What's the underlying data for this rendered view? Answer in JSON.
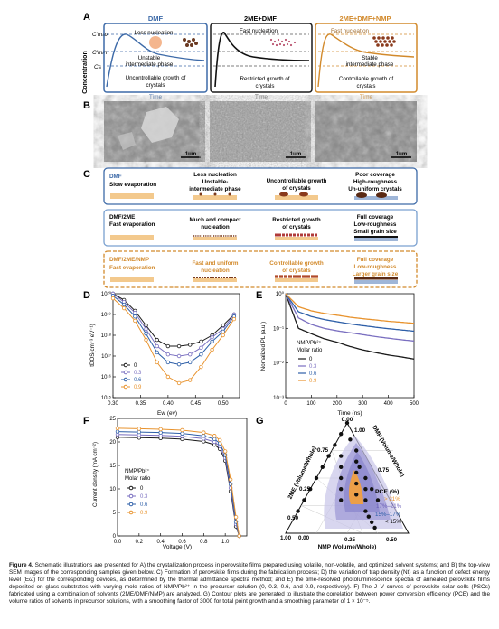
{
  "panelA": {
    "letter": "A",
    "ylabel": "Concentration",
    "cmax": "C′max",
    "cmin": "C′min",
    "cs": "Cs",
    "sub": [
      {
        "title": "DMF",
        "l1": "Less nucleation",
        "l2": "Unstable",
        "l3": "intermediate phase",
        "l4": "Uncontrollable growth of",
        "l5": "crystals",
        "time": "Time",
        "color": "#3d6aa8"
      },
      {
        "title": "2ME+DMF",
        "l1": "Fast nucleation",
        "l4": "Restricted growth of",
        "l5": "crystals",
        "time": "Time",
        "color": "#1a1a1a"
      },
      {
        "title": "2ME+DMF+NMP",
        "l1": "Fast nucleation",
        "l2": "Stable",
        "l3": "intermediate phase",
        "l4": "Controllable growth of",
        "l5": "crystals",
        "time": "Time",
        "color": "#d28a2c"
      }
    ]
  },
  "panelB": {
    "letter": "B",
    "scale": [
      "1um",
      "1um",
      "1um"
    ]
  },
  "panelC": {
    "letter": "C",
    "rows": [
      {
        "name": "DMF",
        "sub": "Slow evaporation",
        "c2a": "Less nucleation",
        "c2b": "Unstable-",
        "c2c": "intermediate phase",
        "c3a": "Uncontrollable growth",
        "c3b": "of crystals",
        "c4a": "Poor coverage",
        "c4b": "High-roughness",
        "c4c": "Un-uniform crystals",
        "color": "#3d6aa8"
      },
      {
        "name": "DMF/2ME",
        "sub": "Fast evaporation",
        "c2a": "Much and compact",
        "c2b": "nucleation",
        "c3a": "Restricted growth",
        "c3b": "of crystals",
        "c4a": "Full coverage",
        "c4b": "Low-roughness",
        "c4c": "Small grain size",
        "color": "#1a1a1a"
      },
      {
        "name": "DMF/2ME/NMP",
        "sub": "Fast evaporation",
        "c2a": "Fast and uniform",
        "c2b": "nucleation",
        "c3a": "Controllable growth",
        "c3b": "of crystals",
        "c4a": "Full coverage",
        "c4b": "Low-roughness",
        "c4c": "Larger grain size",
        "color": "#d28a2c"
      }
    ]
  },
  "panelD": {
    "letter": "D",
    "ylabel": "tDOS(cm⁻³ eV⁻¹)",
    "xlabel": "Ew (ev)",
    "legend": [
      "0",
      "0.3",
      "0.6",
      "0.9"
    ]
  },
  "panelE": {
    "letter": "E",
    "ylabel": "Nomalized PL (a.u.)",
    "xlabel": "Time (ns)",
    "legendTitle1": "NMP/Pb²⁺",
    "legendTitle2": "Molar ratio",
    "legend": [
      "0",
      "0.3",
      "0.6",
      "0.9"
    ]
  },
  "panelF": {
    "letter": "F",
    "ylabel": "Current density (mA cm⁻²)",
    "xlabel": "Voltage (V)",
    "legendTitle1": "NMP/Pb²⁺",
    "legendTitle2": "Molar ratio",
    "legend": [
      "0",
      "0.3",
      "0.6",
      "0.9"
    ]
  },
  "panelG": {
    "letter": "G",
    "axisDMF": "DMF (Volume/Whole)",
    "axis2ME": "2ME (Volume/Whole)",
    "axisNMP": "NMP (Volume/Whole)",
    "pce": "PCE (%)",
    "bands": [
      "> 21%",
      "17%–21%",
      "15%–17%",
      "< 15%"
    ]
  },
  "series_colors": {
    "0": "#1a1a1a",
    "0.3": "#7a6fc0",
    "0.6": "#2e5fa8",
    "0.9": "#e8932e"
  },
  "chart_data": [
    {
      "panel": "D",
      "type": "scatter",
      "xlabel": "Ew (ev)",
      "ylabel": "tDOS(cm⁻³ eV⁻¹)",
      "xlim": [
        0.3,
        0.53
      ],
      "ylim": [
        1000000000000000.0,
        1e+20
      ],
      "yscale": "log",
      "x": [
        0.3,
        0.32,
        0.34,
        0.36,
        0.38,
        0.4,
        0.42,
        0.44,
        0.46,
        0.48,
        0.5,
        0.52
      ],
      "series": [
        {
          "name": "0",
          "values": [
            1e+20,
            5e+19,
            1.5e+19,
            3e+18,
            6e+17,
            3e+17,
            3e+17,
            3.5e+17,
            5e+17,
            1e+18,
            3e+18,
            1e+19
          ]
        },
        {
          "name": "0.3",
          "values": [
            1e+20,
            4e+19,
            1.2e+19,
            2e+18,
            3e+17,
            1.2e+17,
            1e+17,
            1.2e+17,
            2.5e+17,
            8e+17,
            2e+18,
            1e+19
          ]
        },
        {
          "name": "0.6",
          "values": [
            8e+19,
            3e+19,
            8e+18,
            1.2e+18,
            1.5e+17,
            5e+16,
            4e+16,
            5e+16,
            1.2e+17,
            5e+17,
            1.5e+18,
            8e+18
          ]
        },
        {
          "name": "0.9",
          "values": [
            6e+19,
            2e+19,
            5e+18,
            6e+17,
            5e+16,
            1e+16,
            5000000000000000.0,
            7000000000000000.0,
            3e+16,
            2e+17,
            1e+18,
            6e+18
          ]
        }
      ]
    },
    {
      "panel": "E",
      "type": "line",
      "xlabel": "Time (ns)",
      "ylabel": "Nomalized PL (a.u.)",
      "xlim": [
        0,
        500
      ],
      "ylim": [
        0.001,
        1
      ],
      "yscale": "log",
      "x": [
        0,
        50,
        100,
        150,
        200,
        250,
        300,
        350,
        400,
        450,
        500
      ],
      "series": [
        {
          "name": "0",
          "values": [
            1,
            0.1,
            0.07,
            0.05,
            0.04,
            0.03,
            0.024,
            0.02,
            0.017,
            0.015,
            0.013
          ]
        },
        {
          "name": "0.3",
          "values": [
            1,
            0.2,
            0.13,
            0.1,
            0.085,
            0.075,
            0.066,
            0.058,
            0.052,
            0.047,
            0.043
          ]
        },
        {
          "name": "0.6",
          "values": [
            1,
            0.3,
            0.22,
            0.18,
            0.155,
            0.135,
            0.12,
            0.108,
            0.098,
            0.09,
            0.083
          ]
        },
        {
          "name": "0.9",
          "values": [
            1,
            0.42,
            0.32,
            0.27,
            0.24,
            0.21,
            0.19,
            0.175,
            0.16,
            0.15,
            0.14
          ]
        }
      ]
    },
    {
      "panel": "F",
      "type": "line",
      "xlabel": "Voltage (V)",
      "ylabel": "Current density (mA cm⁻²)",
      "xlim": [
        0,
        1.2
      ],
      "ylim": [
        0,
        25
      ],
      "x": [
        0,
        0.2,
        0.4,
        0.6,
        0.8,
        0.9,
        0.95,
        1.0,
        1.05,
        1.1,
        1.13
      ],
      "series": [
        {
          "name": "0",
          "values": [
            21.0,
            20.9,
            20.8,
            20.6,
            20.1,
            19.4,
            18.5,
            16.0,
            9.5,
            2.0,
            0
          ]
        },
        {
          "name": "0.3",
          "values": [
            21.6,
            21.5,
            21.4,
            21.2,
            20.7,
            20.0,
            19.1,
            16.6,
            10.2,
            2.5,
            0
          ]
        },
        {
          "name": "0.6",
          "values": [
            22.2,
            22.1,
            22.0,
            21.8,
            21.3,
            20.6,
            19.7,
            17.2,
            11.0,
            3.0,
            0
          ]
        },
        {
          "name": "0.9",
          "values": [
            22.9,
            22.8,
            22.7,
            22.5,
            22.0,
            21.3,
            20.4,
            18.0,
            12.0,
            4.0,
            0
          ]
        }
      ]
    }
  ],
  "caption": {
    "label": "Figure 4.",
    "text": "Schematic illustrations are presented for A) the crystallization process in perovskite films prepared using volatile, non-volatile, and optimized solvent systems; and B) the top-view SEM images of the corresponding samples given below. C) Formation of perovskite films during the fabrication process; D) the variation of trap density (Nt) as a function of defect energy level (Eω) for the corresponding devices, as determined by the thermal admittance spectra method; and E) the time-resolved photoluminescence spectra of annealed perovskite films deposited on glass substrates with varying mole ratios of NMP/Pb²⁺ in the precursor solution (0, 0.3, 0.6, and 0.9, respectively). F) The J–V curves of perovskite solar cells (PSCs) fabricated using a combination of solvents (2ME/DMF/NMP) are analyzed. G) Contour plots are generated to illustrate the correlation between power conversion efficiency (PCE) and the volume ratios of solvents in precursor solutions, with a smoothing factor of 3000 for total point growth and a smoothing parameter of 1 × 10⁻⁵."
  }
}
